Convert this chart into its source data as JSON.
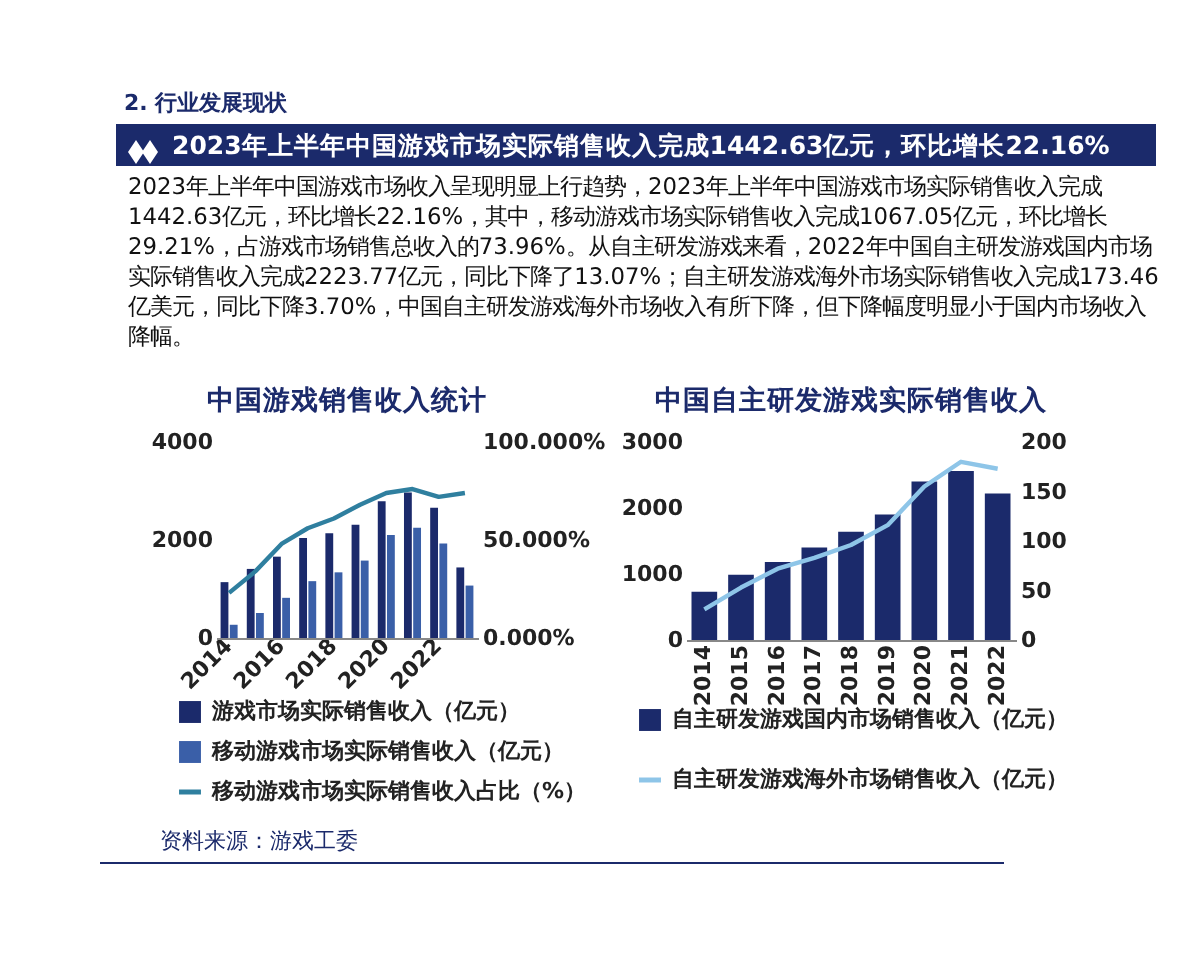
{
  "chart_data": [
    {
      "type": "other",
      "title": "2023年上半年中国游戏市场实际销售收入完成1442.63亿元，环比增长22.16%",
      "annotations": [
        "2. 行业发展现状",
        "2023年上半年中国游戏市场收入呈现明显上行趋势，2023年上半年中国游戏市场实际销售收入完成1442.63亿元，环比增长22.16%，其中，移动游戏市场实际销售收入完成1067.05亿元，环比增长29.21%，占游戏市场销售总收入的73.96%。从自主研发游戏来看，2022年中国自主研发游戏国内市场实际销售收入完成2223.77亿元，同比下降了13.07%；自主研发游戏海外市场实际销售收入完成173.46亿美元，同比下降3.70%，中国自主研发游戏海外市场收入有所下降，但下降幅度明显小于国内市场收入降幅。",
        "资料来源：游戏工委"
      ]
    },
    {
      "type": "bar",
      "title": "中国游戏销售收入统计",
      "categories": [
        "2014",
        null,
        "2016",
        null,
        "2018",
        null,
        "2020",
        null,
        "2022",
        null
      ],
      "series": [
        {
          "name": "游戏市场实际销售收入（亿元）",
          "color": "#1b2a6b",
          "values": [
            1140,
            1410,
            1660,
            2040,
            2140,
            2310,
            2790,
            2970,
            2660,
            1440
          ]
        },
        {
          "name": "移动游戏市场实际销售收入（亿元）",
          "color": "#3a5fa8",
          "values": [
            270,
            510,
            820,
            1160,
            1340,
            1580,
            2100,
            2250,
            1930,
            1070
          ]
        },
        {
          "name": "移动游戏市场实际销售收入占比（%）",
          "type": "line",
          "axis": "y2",
          "color": "#2f7f9f",
          "values": [
            23,
            34,
            48,
            56,
            61,
            68,
            74,
            76,
            72,
            74
          ]
        }
      ],
      "ylim": [
        0,
        4000
      ],
      "yticks": [
        0,
        2000,
        4000
      ],
      "y2lim": [
        0,
        100
      ],
      "y2ticks": [
        {
          "value": 0,
          "label": "0.000%"
        },
        {
          "value": 50,
          "label": "50.000%"
        },
        {
          "value": 100,
          "label": "100.000%"
        }
      ],
      "legend": "bottom"
    },
    {
      "type": "bar",
      "title": "中国自主研发游戏实际销售收入",
      "categories": [
        "2014",
        "2015",
        "2016",
        "2017",
        "2018",
        "2019",
        "2020",
        "2021",
        "2022"
      ],
      "series": [
        {
          "name": "自主研发游戏国内市场销售收入（亿元）",
          "color": "#1b2a6b",
          "values": [
            730,
            990,
            1180,
            1400,
            1640,
            1900,
            2400,
            2560,
            2220
          ]
        },
        {
          "name": "自主研发游戏海外市场销售收入（亿元）",
          "type": "line",
          "axis": "y2",
          "color": "#8ec5e8",
          "values": [
            31,
            53,
            72,
            83,
            96,
            116,
            155,
            180,
            173
          ]
        }
      ],
      "ylim": [
        0,
        3000
      ],
      "yticks": [
        0,
        1000,
        2000,
        3000
      ],
      "y2lim": [
        0,
        200
      ],
      "y2ticks": [
        0,
        50,
        100,
        150,
        200
      ],
      "legend": "bottom"
    }
  ]
}
